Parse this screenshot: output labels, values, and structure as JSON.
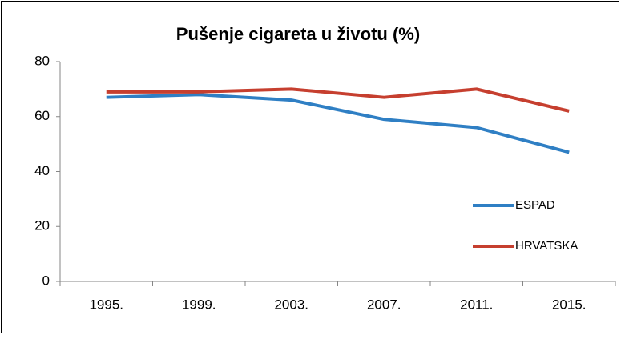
{
  "chart_data": {
    "type": "line",
    "title": "Pušenje cigareta u životu (%)",
    "categories": [
      "1995.",
      "1999.",
      "2003.",
      "2007.",
      "2011.",
      "2015."
    ],
    "series": [
      {
        "name": "ESPAD",
        "color": "#2f7fc4",
        "values": [
          67,
          68,
          66,
          59,
          56,
          47
        ]
      },
      {
        "name": "HRVATSKA",
        "color": "#c63f2f",
        "values": [
          69,
          69,
          70,
          67,
          70,
          62
        ]
      }
    ],
    "ylim": [
      0,
      80
    ],
    "yticks": [
      0,
      20,
      40,
      60,
      80
    ],
    "grid": false,
    "legend": "right"
  }
}
